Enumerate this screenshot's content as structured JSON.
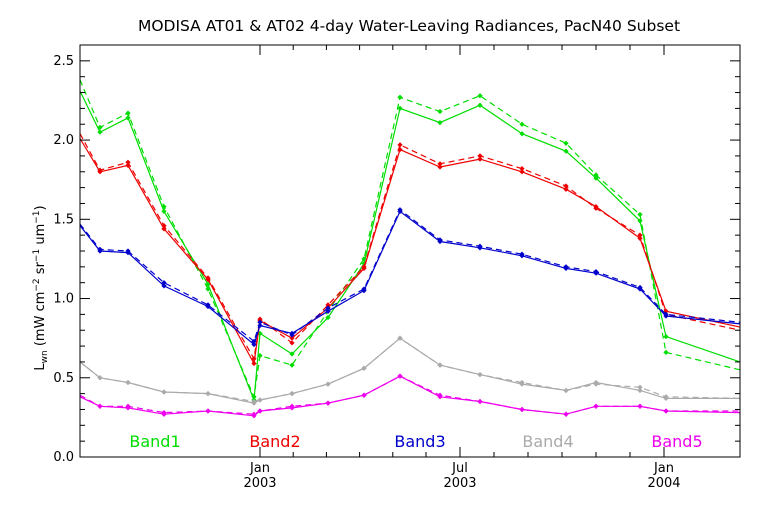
{
  "chart_data": {
    "type": "line",
    "title": "MODISA AT01 & AT02 4-day Water-Leaving Radiances, PacN40 Subset",
    "ylabel": {
      "main": "L",
      "sub": "wn",
      "p1": " (mW cm",
      "e1": "−2",
      "p2": " sr",
      "e2": "−1",
      "p3": " um",
      "e3": "−1",
      "p4": ")"
    },
    "xlabel": "",
    "xlim": [
      2002.45,
      2004.1
    ],
    "ylim": [
      0,
      2.6
    ],
    "y_ticks": [
      {
        "value": 0.0,
        "label": "0.0"
      },
      {
        "value": 0.5,
        "label": "0.5"
      },
      {
        "value": 1.0,
        "label": "1.0"
      },
      {
        "value": 1.5,
        "label": "1.5"
      },
      {
        "value": 2.0,
        "label": "2.0"
      },
      {
        "value": 2.5,
        "label": "2.5"
      }
    ],
    "x_ticks": [
      {
        "value": 2002.9,
        "month": "Jan",
        "year": "2003"
      },
      {
        "value": 2003.4,
        "month": "Jul",
        "year": "2003"
      },
      {
        "value": 2003.91,
        "month": "Jan",
        "year": "2004"
      }
    ],
    "x_minor_ticks": [
      2002.983,
      2003.066,
      2003.149,
      2003.232,
      2003.315,
      2003.485,
      2003.57,
      2003.655,
      2003.74,
      2003.825
    ],
    "x": [
      2002.45,
      2002.5,
      2002.57,
      2002.66,
      2002.77,
      2002.885,
      2002.9,
      2002.98,
      2003.07,
      2003.16,
      2003.25,
      2003.35,
      2003.45,
      2003.555,
      2003.665,
      2003.74,
      2003.85,
      2003.915,
      2004.1
    ],
    "series": [
      {
        "name": "Band1",
        "color": "#00dd00",
        "values": [
          2.31,
          2.05,
          2.14,
          1.55,
          1.09,
          0.36,
          0.78,
          0.65,
          0.88,
          1.22,
          2.2,
          2.11,
          2.22,
          2.04,
          1.93,
          1.76,
          1.49,
          0.76,
          0.6
        ],
        "values2": [
          2.38,
          2.08,
          2.17,
          1.58,
          1.06,
          0.38,
          0.64,
          0.58,
          0.92,
          1.25,
          2.27,
          2.18,
          2.28,
          2.1,
          1.98,
          1.78,
          1.53,
          0.66,
          0.55
        ]
      },
      {
        "name": "Band2",
        "color": "#ee0000",
        "values": [
          2.01,
          1.8,
          1.84,
          1.44,
          1.12,
          0.59,
          0.86,
          0.75,
          0.94,
          1.19,
          1.94,
          1.83,
          1.88,
          1.8,
          1.69,
          1.58,
          1.38,
          0.92,
          0.82
        ],
        "values2": [
          2.04,
          1.81,
          1.86,
          1.46,
          1.13,
          0.62,
          0.87,
          0.72,
          0.96,
          1.2,
          1.97,
          1.85,
          1.9,
          1.82,
          1.71,
          1.57,
          1.4,
          0.9,
          0.8
        ]
      },
      {
        "name": "Band3",
        "color": "#0000cc",
        "values": [
          1.46,
          1.3,
          1.29,
          1.08,
          0.95,
          0.71,
          0.83,
          0.78,
          0.92,
          1.05,
          1.55,
          1.36,
          1.32,
          1.27,
          1.19,
          1.16,
          1.06,
          0.89,
          0.84
        ],
        "values2": [
          1.47,
          1.31,
          1.3,
          1.1,
          0.96,
          0.73,
          0.85,
          0.77,
          0.94,
          1.06,
          1.56,
          1.37,
          1.33,
          1.28,
          1.2,
          1.17,
          1.07,
          0.9,
          0.85
        ]
      },
      {
        "name": "Band4",
        "color": "#aaaaaa",
        "values": [
          0.6,
          0.5,
          0.47,
          0.41,
          0.4,
          0.34,
          0.36,
          0.4,
          0.46,
          0.56,
          0.75,
          0.58,
          0.52,
          0.46,
          0.42,
          0.47,
          0.42,
          0.37,
          0.37
        ],
        "values2": [
          0.6,
          0.5,
          0.47,
          0.41,
          0.4,
          0.35,
          0.36,
          0.4,
          0.46,
          0.56,
          0.75,
          0.58,
          0.52,
          0.47,
          0.42,
          0.46,
          0.44,
          0.38,
          0.37
        ]
      },
      {
        "name": "Band5",
        "color": "#ee00ee",
        "values": [
          0.38,
          0.32,
          0.31,
          0.27,
          0.29,
          0.26,
          0.29,
          0.31,
          0.34,
          0.39,
          0.51,
          0.38,
          0.35,
          0.3,
          0.27,
          0.32,
          0.32,
          0.29,
          0.28
        ],
        "values2": [
          0.39,
          0.32,
          0.32,
          0.28,
          0.29,
          0.27,
          0.29,
          0.32,
          0.34,
          0.39,
          0.51,
          0.39,
          0.35,
          0.3,
          0.27,
          0.32,
          0.32,
          0.29,
          0.29
        ]
      }
    ],
    "line_styles": {
      "values": "solid",
      "values2": "dashed"
    },
    "grid": false,
    "legend": "bottom"
  }
}
